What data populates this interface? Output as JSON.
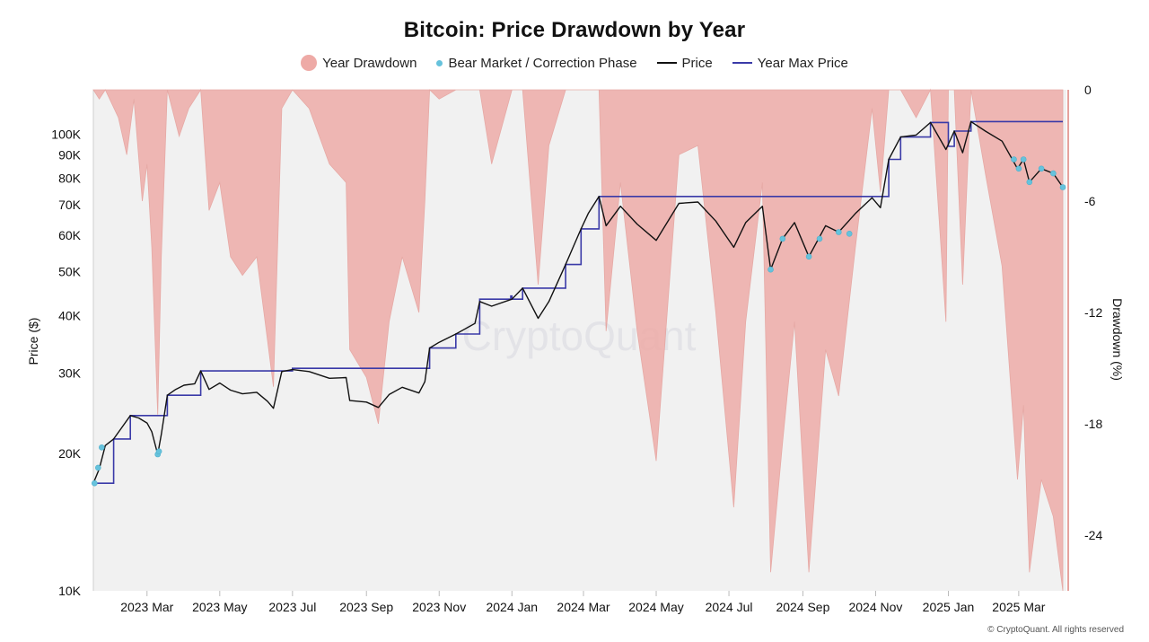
{
  "chart_data": {
    "type": "line",
    "title": "Bitcoin: Price Drawdown by Year",
    "legend": [
      {
        "name": "Year Drawdown",
        "color": "#eeaaa6",
        "marker": "circle"
      },
      {
        "name": "Bear Market / Correction Phase",
        "color": "#66c2dc",
        "marker": "dot"
      },
      {
        "name": "Price",
        "color": "#111111",
        "marker": "line"
      },
      {
        "name": "Year Max Price",
        "color": "#3a3aa8",
        "marker": "line"
      }
    ],
    "legend_position": "top-center",
    "ylabel_left": "Price ($)",
    "ylabel_right": "Drawdown (%)",
    "y_left_scale": "log",
    "y_left_ticks": [
      {
        "value": 10000,
        "label": "10K"
      },
      {
        "value": 20000,
        "label": "20K"
      },
      {
        "value": 30000,
        "label": "30K"
      },
      {
        "value": 40000,
        "label": "40K"
      },
      {
        "value": 50000,
        "label": "50K"
      },
      {
        "value": 60000,
        "label": "60K"
      },
      {
        "value": 70000,
        "label": "70K"
      },
      {
        "value": 80000,
        "label": "80K"
      },
      {
        "value": 90000,
        "label": "90K"
      },
      {
        "value": 100000,
        "label": "100K"
      }
    ],
    "y_left_range": [
      10000,
      125000
    ],
    "y_right_ticks": [
      0,
      -6,
      -12,
      -18,
      -24
    ],
    "y_right_range": [
      -27,
      0
    ],
    "x_range": [
      "2023-01-15",
      "2025-04-10"
    ],
    "x_ticks": [
      {
        "date": "2023-03-01",
        "label": "2023 Mar"
      },
      {
        "date": "2023-05-01",
        "label": "2023 May"
      },
      {
        "date": "2023-07-01",
        "label": "2023 Jul"
      },
      {
        "date": "2023-09-01",
        "label": "2023 Sep"
      },
      {
        "date": "2023-11-01",
        "label": "2023 Nov"
      },
      {
        "date": "2024-01-01",
        "label": "2024 Jan"
      },
      {
        "date": "2024-03-01",
        "label": "2024 Mar"
      },
      {
        "date": "2024-05-01",
        "label": "2024 May"
      },
      {
        "date": "2024-07-01",
        "label": "2024 Jul"
      },
      {
        "date": "2024-09-01",
        "label": "2024 Sep"
      },
      {
        "date": "2024-11-01",
        "label": "2024 Nov"
      },
      {
        "date": "2025-01-01",
        "label": "2025 Jan"
      },
      {
        "date": "2025-03-01",
        "label": "2025 Mar"
      }
    ],
    "grid": false,
    "price": [
      [
        "2023-01-15",
        17200
      ],
      [
        "2023-01-20",
        18500
      ],
      [
        "2023-01-25",
        20800
      ],
      [
        "2023-02-01",
        21500
      ],
      [
        "2023-02-08",
        22800
      ],
      [
        "2023-02-15",
        24200
      ],
      [
        "2023-02-22",
        23900
      ],
      [
        "2023-03-01",
        23300
      ],
      [
        "2023-03-05",
        22300
      ],
      [
        "2023-03-10",
        19900
      ],
      [
        "2023-03-13",
        22000
      ],
      [
        "2023-03-18",
        26800
      ],
      [
        "2023-03-25",
        27600
      ],
      [
        "2023-04-01",
        28200
      ],
      [
        "2023-04-10",
        28400
      ],
      [
        "2023-04-15",
        30300
      ],
      [
        "2023-04-22",
        27600
      ],
      [
        "2023-05-01",
        28500
      ],
      [
        "2023-05-10",
        27500
      ],
      [
        "2023-05-20",
        27000
      ],
      [
        "2023-06-01",
        27200
      ],
      [
        "2023-06-10",
        26000
      ],
      [
        "2023-06-15",
        25100
      ],
      [
        "2023-06-22",
        30200
      ],
      [
        "2023-07-01",
        30500
      ],
      [
        "2023-07-15",
        30200
      ],
      [
        "2023-08-01",
        29200
      ],
      [
        "2023-08-15",
        29300
      ],
      [
        "2023-08-18",
        26100
      ],
      [
        "2023-09-01",
        25900
      ],
      [
        "2023-09-11",
        25200
      ],
      [
        "2023-09-20",
        26900
      ],
      [
        "2023-10-01",
        27900
      ],
      [
        "2023-10-15",
        27100
      ],
      [
        "2023-10-20",
        28700
      ],
      [
        "2023-10-24",
        34000
      ],
      [
        "2023-11-01",
        35000
      ],
      [
        "2023-11-15",
        36500
      ],
      [
        "2023-12-01",
        38500
      ],
      [
        "2023-12-05",
        43000
      ],
      [
        "2023-12-15",
        42000
      ],
      [
        "2024-01-01",
        43500
      ],
      [
        "2024-01-10",
        46000
      ],
      [
        "2024-01-23",
        39500
      ],
      [
        "2024-02-01",
        43000
      ],
      [
        "2024-02-15",
        51800
      ],
      [
        "2024-02-28",
        62000
      ],
      [
        "2024-03-05",
        67000
      ],
      [
        "2024-03-14",
        73000
      ],
      [
        "2024-03-20",
        63000
      ],
      [
        "2024-04-01",
        69500
      ],
      [
        "2024-04-15",
        63500
      ],
      [
        "2024-05-01",
        58500
      ],
      [
        "2024-05-20",
        70500
      ],
      [
        "2024-06-05",
        71000
      ],
      [
        "2024-06-20",
        64500
      ],
      [
        "2024-07-05",
        56500
      ],
      [
        "2024-07-15",
        64000
      ],
      [
        "2024-07-29",
        69500
      ],
      [
        "2024-08-05",
        50500
      ],
      [
        "2024-08-15",
        59000
      ],
      [
        "2024-08-25",
        64000
      ],
      [
        "2024-09-06",
        53900
      ],
      [
        "2024-09-20",
        63000
      ],
      [
        "2024-10-01",
        61000
      ],
      [
        "2024-10-15",
        67000
      ],
      [
        "2024-10-29",
        72500
      ],
      [
        "2024-11-05",
        69000
      ],
      [
        "2024-11-12",
        88000
      ],
      [
        "2024-11-22",
        98500
      ],
      [
        "2024-12-05",
        99500
      ],
      [
        "2024-12-17",
        106000
      ],
      [
        "2024-12-30",
        92500
      ],
      [
        "2025-01-06",
        101500
      ],
      [
        "2025-01-13",
        91000
      ],
      [
        "2025-01-20",
        106500
      ],
      [
        "2025-02-01",
        101500
      ],
      [
        "2025-02-15",
        96500
      ],
      [
        "2025-02-28",
        84000
      ],
      [
        "2025-03-05",
        88000
      ],
      [
        "2025-03-10",
        78500
      ],
      [
        "2025-03-20",
        84000
      ],
      [
        "2025-03-30",
        82000
      ],
      [
        "2025-04-07",
        76500
      ]
    ],
    "year_max_price": [
      [
        "2023-01-15",
        17200
      ],
      [
        "2023-02-01",
        21500
      ],
      [
        "2023-02-15",
        24200
      ],
      [
        "2023-03-18",
        26800
      ],
      [
        "2023-04-15",
        30300
      ],
      [
        "2023-07-01",
        30700
      ],
      [
        "2023-10-24",
        34000
      ],
      [
        "2023-11-15",
        36500
      ],
      [
        "2023-12-05",
        43500
      ],
      [
        "2023-12-31",
        44200
      ],
      [
        "2024-01-01",
        43500
      ],
      [
        "2024-01-10",
        46000
      ],
      [
        "2024-02-15",
        51800
      ],
      [
        "2024-02-28",
        62000
      ],
      [
        "2024-03-14",
        73000
      ],
      [
        "2024-11-05",
        73000
      ],
      [
        "2024-11-12",
        88000
      ],
      [
        "2024-11-22",
        98500
      ],
      [
        "2024-12-17",
        106000
      ],
      [
        "2024-12-31",
        106000
      ],
      [
        "2025-01-01",
        94000
      ],
      [
        "2025-01-06",
        101500
      ],
      [
        "2025-01-20",
        106500
      ],
      [
        "2025-04-07",
        106500
      ]
    ],
    "bear_market_points": [
      [
        "2023-01-16",
        17200
      ],
      [
        "2023-01-19",
        18600
      ],
      [
        "2023-01-22",
        20600
      ],
      [
        "2023-03-10",
        19900
      ],
      [
        "2023-03-11",
        20200
      ],
      [
        "2024-08-05",
        50500
      ],
      [
        "2024-08-15",
        59000
      ],
      [
        "2024-09-06",
        53900
      ],
      [
        "2024-09-15",
        59000
      ],
      [
        "2024-10-01",
        61000
      ],
      [
        "2024-10-10",
        60500
      ],
      [
        "2025-02-25",
        88000
      ],
      [
        "2025-03-01",
        84000
      ],
      [
        "2025-03-05",
        88000
      ],
      [
        "2025-03-10",
        78500
      ],
      [
        "2025-03-20",
        84000
      ],
      [
        "2025-03-30",
        82000
      ],
      [
        "2025-04-07",
        76500
      ]
    ],
    "drawdown": [
      [
        "2023-01-15",
        0
      ],
      [
        "2023-01-20",
        -0.5
      ],
      [
        "2023-01-25",
        0
      ],
      [
        "2023-02-05",
        -1.5
      ],
      [
        "2023-02-12",
        -3.5
      ],
      [
        "2023-02-18",
        -0.5
      ],
      [
        "2023-02-25",
        -6
      ],
      [
        "2023-03-01",
        -4
      ],
      [
        "2023-03-05",
        -8.5
      ],
      [
        "2023-03-10",
        -17.5
      ],
      [
        "2023-03-13",
        -9
      ],
      [
        "2023-03-18",
        0
      ],
      [
        "2023-03-28",
        -2.5
      ],
      [
        "2023-04-05",
        -1
      ],
      [
        "2023-04-15",
        0
      ],
      [
        "2023-04-22",
        -6.5
      ],
      [
        "2023-05-01",
        -5
      ],
      [
        "2023-05-10",
        -9
      ],
      [
        "2023-05-20",
        -10
      ],
      [
        "2023-06-01",
        -9
      ],
      [
        "2023-06-10",
        -13.5
      ],
      [
        "2023-06-15",
        -16
      ],
      [
        "2023-06-22",
        -1
      ],
      [
        "2023-07-01",
        0
      ],
      [
        "2023-07-15",
        -1
      ],
      [
        "2023-08-01",
        -4
      ],
      [
        "2023-08-15",
        -5
      ],
      [
        "2023-08-18",
        -14
      ],
      [
        "2023-09-01",
        -15.5
      ],
      [
        "2023-09-11",
        -18
      ],
      [
        "2023-09-20",
        -12.5
      ],
      [
        "2023-10-01",
        -9
      ],
      [
        "2023-10-15",
        -12
      ],
      [
        "2023-10-20",
        -6
      ],
      [
        "2023-10-24",
        0
      ],
      [
        "2023-11-01",
        -0.5
      ],
      [
        "2023-11-15",
        0
      ],
      [
        "2023-12-01",
        0
      ],
      [
        "2023-12-05",
        0
      ],
      [
        "2023-12-15",
        -4
      ],
      [
        "2024-01-01",
        0
      ],
      [
        "2024-01-10",
        0
      ],
      [
        "2024-01-23",
        -10.5
      ],
      [
        "2024-02-01",
        -3
      ],
      [
        "2024-02-15",
        0
      ],
      [
        "2024-02-28",
        0
      ],
      [
        "2024-03-14",
        0
      ],
      [
        "2024-03-20",
        -13
      ],
      [
        "2024-04-01",
        -5
      ],
      [
        "2024-04-15",
        -13
      ],
      [
        "2024-05-01",
        -20
      ],
      [
        "2024-05-20",
        -3.5
      ],
      [
        "2024-06-05",
        -3
      ],
      [
        "2024-06-20",
        -12
      ],
      [
        "2024-07-05",
        -22.5
      ],
      [
        "2024-07-15",
        -12.5
      ],
      [
        "2024-07-29",
        -5
      ],
      [
        "2024-08-05",
        -26
      ],
      [
        "2024-08-15",
        -19
      ],
      [
        "2024-08-25",
        -12.5
      ],
      [
        "2024-09-06",
        -26
      ],
      [
        "2024-09-20",
        -14
      ],
      [
        "2024-10-01",
        -16.5
      ],
      [
        "2024-10-15",
        -8.5
      ],
      [
        "2024-10-29",
        -1
      ],
      [
        "2024-11-05",
        -5.5
      ],
      [
        "2024-11-12",
        0
      ],
      [
        "2024-11-22",
        0
      ],
      [
        "2024-12-05",
        -1.5
      ],
      [
        "2024-12-17",
        0
      ],
      [
        "2024-12-30",
        -12.5
      ],
      [
        "2025-01-01",
        0
      ],
      [
        "2025-01-06",
        0
      ],
      [
        "2025-01-13",
        -10.5
      ],
      [
        "2025-01-20",
        0
      ],
      [
        "2025-02-01",
        -4.5
      ],
      [
        "2025-02-15",
        -9.5
      ],
      [
        "2025-02-28",
        -21
      ],
      [
        "2025-03-05",
        -17
      ],
      [
        "2025-03-10",
        -26
      ],
      [
        "2025-03-20",
        -21
      ],
      [
        "2025-03-30",
        -23
      ],
      [
        "2025-04-07",
        -27
      ]
    ]
  },
  "watermark": "CryptoQuant",
  "credit": "© CryptoQuant. All rights reserved"
}
